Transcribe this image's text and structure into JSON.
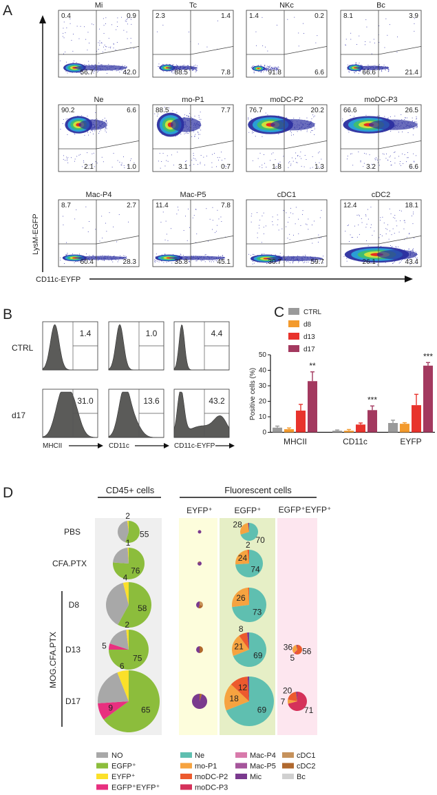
{
  "panel_labels": {
    "a": "A",
    "b": "B",
    "c": "C",
    "d": "D"
  },
  "panel_a": {
    "y_axis_label": "LysM-EGFP",
    "x_axis_label": "CD11c-EYFP",
    "plots": [
      {
        "title": "Mi",
        "q": [
          "0.4",
          "0.9",
          "56.7",
          "42.0"
        ]
      },
      {
        "title": "Tc",
        "q": [
          "2.3",
          "1.4",
          "88.5",
          "7.8"
        ]
      },
      {
        "title": "NKc",
        "q": [
          "1.4",
          "0.2",
          "91.8",
          "6.6"
        ]
      },
      {
        "title": "Bc",
        "q": [
          "8.1",
          "3.9",
          "66.6",
          "21.4"
        ]
      },
      {
        "title": "Ne",
        "q": [
          "90.2",
          "6.6",
          "2.1",
          "1.0"
        ]
      },
      {
        "title": "mo-P1",
        "q": [
          "88.5",
          "7.7",
          "3.1",
          "0.7"
        ]
      },
      {
        "title": "moDC-P2",
        "q": [
          "76.7",
          "20.2",
          "1.8",
          "1.3"
        ]
      },
      {
        "title": "moDC-P3",
        "q": [
          "66.6",
          "26.5",
          "3.2",
          "6.6"
        ]
      },
      {
        "title": "Mac-P4",
        "q": [
          "8.7",
          "2.7",
          "60.4",
          "28.3"
        ]
      },
      {
        "title": "Mac-P5",
        "q": [
          "11.4",
          "7.8",
          "35.8",
          "45.1"
        ]
      },
      {
        "title": "cDC1",
        "q": [
          null,
          null,
          "30.7",
          "59.7"
        ]
      },
      {
        "title": "cDC2",
        "q": [
          "12.4",
          "18.1",
          "26.1",
          "43.4"
        ]
      }
    ]
  },
  "panel_b": {
    "rows": [
      "CTRL",
      "d17"
    ],
    "markers": [
      "MHCII",
      "CD11c",
      "CD11c-EYFP"
    ],
    "values": [
      [
        "1.4",
        "1.0",
        "4.4"
      ],
      [
        "31.0",
        "13.6",
        "43.2"
      ]
    ]
  },
  "chart_data": {
    "type": "bar",
    "title": "",
    "xlabel": "",
    "ylabel": "Positive cells (%)",
    "ylim": [
      0,
      50
    ],
    "yticks": [
      "0",
      "10",
      "20",
      "30",
      "40",
      "50"
    ],
    "categories": [
      "MHCII",
      "CD11c",
      "EYFP"
    ],
    "legend_position": "top-left",
    "series": [
      {
        "name": "CTRL",
        "color": "#9a9a9a",
        "values": [
          3,
          1,
          6
        ],
        "err_top": [
          4,
          1.5,
          7.8
        ]
      },
      {
        "name": "d8",
        "color": "#f39a2d",
        "values": [
          2,
          1,
          5.5
        ],
        "err_top": [
          2.8,
          1.8,
          6.2
        ]
      },
      {
        "name": "d13",
        "color": "#e8332c",
        "values": [
          14,
          5,
          17.5
        ],
        "err_top": [
          18,
          6,
          24.5
        ]
      },
      {
        "name": "d17",
        "color": "#a3395f",
        "values": [
          33,
          14.3,
          43
        ],
        "err_top": [
          39,
          17,
          45
        ]
      }
    ],
    "significance": [
      "**",
      "***",
      "***"
    ]
  },
  "panel_d": {
    "header_cd45": "CD45+ cells",
    "header_fluor": "Fluorescent cells",
    "sub_eyfp": "EYFP⁺",
    "sub_egfp": "EGFP⁺",
    "sub_double": "EGFP⁺EYFP⁺",
    "group_label": "MOG.CFA.PTX",
    "rows": [
      "PBS",
      "CFA.PTX",
      "D8",
      "D13",
      "D17"
    ],
    "cd45_colors": {
      "NO": "#a8a8a8",
      "EGFP": "#8cbd3c",
      "EYFP": "#fbe02a",
      "DOUBLE": "#e8307f"
    },
    "cell_colors": {
      "Ne": "#5fbfb0",
      "mo-P1": "#f6a340",
      "moDC-P2": "#ec5a2e",
      "moDC-P3": "#d5315a",
      "Mac-P4": "#d87aab",
      "Mac-P5": "#a5559b",
      "Mic": "#7a3a8e",
      "cDC1": "#c6925c",
      "cDC2": "#b0682e",
      "Bc": "#d0d0d0"
    },
    "cd45_pies": [
      {
        "size": 16,
        "segments": [
          {
            "k": "EGFP",
            "v": 55,
            "label": "55"
          },
          {
            "k": "NO",
            "v": 43
          },
          {
            "k": "EYFP",
            "v": 2,
            "label": "2"
          }
        ]
      },
      {
        "size": 23,
        "segments": [
          {
            "k": "EGFP",
            "v": 76,
            "label": "76"
          },
          {
            "k": "NO",
            "v": 23
          },
          {
            "k": "EYFP",
            "v": 1,
            "label": "1"
          }
        ]
      },
      {
        "size": 33,
        "segments": [
          {
            "k": "EGFP",
            "v": 58,
            "label": "58"
          },
          {
            "k": "NO",
            "v": 38
          },
          {
            "k": "EYFP",
            "v": 4,
            "label": "4"
          }
        ]
      },
      {
        "size": 29,
        "segments": [
          {
            "k": "EGFP",
            "v": 75,
            "label": "75"
          },
          {
            "k": "DOUBLE",
            "v": 5,
            "label": "5"
          },
          {
            "k": "NO",
            "v": 18
          },
          {
            "k": "EYFP",
            "v": 2,
            "label": "2"
          }
        ]
      },
      {
        "size": 45,
        "segments": [
          {
            "k": "EGFP",
            "v": 65,
            "label": "65"
          },
          {
            "k": "DOUBLE",
            "v": 9,
            "label": "9"
          },
          {
            "k": "NO",
            "v": 20
          },
          {
            "k": "EYFP",
            "v": 6,
            "label": "6"
          }
        ]
      }
    ],
    "eyfp_pies": [
      {
        "size": 2.5,
        "segments": [
          {
            "k": "Mic",
            "v": 100
          }
        ]
      },
      {
        "size": 3,
        "segments": [
          {
            "k": "Mic",
            "v": 90
          },
          {
            "k": "cDC2",
            "v": 10
          }
        ]
      },
      {
        "size": 5,
        "segments": [
          {
            "k": "cDC1",
            "v": 30
          },
          {
            "k": "cDC2",
            "v": 25
          },
          {
            "k": "Mic",
            "v": 45
          }
        ]
      },
      {
        "size": 5,
        "segments": [
          {
            "k": "cDC2",
            "v": 50
          },
          {
            "k": "Mic",
            "v": 50
          }
        ]
      },
      {
        "size": 11,
        "segments": [
          {
            "k": "cDC2",
            "v": 5
          },
          {
            "k": "Mic",
            "v": 95
          }
        ]
      }
    ],
    "egfp_pies": [
      {
        "size": 13,
        "segments": [
          {
            "k": "Ne",
            "v": 70,
            "label": "70"
          },
          {
            "k": "mo-P1",
            "v": 28,
            "label": "28"
          },
          {
            "k": "Mic",
            "v": 2
          }
        ]
      },
      {
        "size": 20,
        "segments": [
          {
            "k": "Ne",
            "v": 74,
            "label": "74"
          },
          {
            "k": "mo-P1",
            "v": 24,
            "label": "24"
          },
          {
            "k": "moDC-P2",
            "v": 2,
            "label": "2"
          }
        ]
      },
      {
        "size": 25,
        "segments": [
          {
            "k": "Ne",
            "v": 73,
            "label": "73"
          },
          {
            "k": "mo-P1",
            "v": 26,
            "label": "26"
          },
          {
            "k": "moDC-P2",
            "v": 1
          }
        ]
      },
      {
        "size": 25,
        "segments": [
          {
            "k": "Ne",
            "v": 69,
            "label": "69"
          },
          {
            "k": "mo-P1",
            "v": 21,
            "label": "21"
          },
          {
            "k": "moDC-P2",
            "v": 8,
            "label": "8"
          },
          {
            "k": "Mic",
            "v": 2
          }
        ]
      },
      {
        "size": 36,
        "segments": [
          {
            "k": "Ne",
            "v": 69,
            "label": "69"
          },
          {
            "k": "mo-P1",
            "v": 18,
            "label": "18"
          },
          {
            "k": "moDC-P2",
            "v": 12,
            "label": "12"
          },
          {
            "k": "Mic",
            "v": 1
          }
        ]
      }
    ],
    "double_pies": [
      null,
      null,
      null,
      {
        "size": 7,
        "segments": [
          {
            "k": "moDC-P2",
            "v": 56,
            "label": "56"
          },
          {
            "k": "moDC-P3",
            "v": 5,
            "label": "5"
          },
          {
            "k": "mo-P1",
            "v": 36,
            "label": "36"
          },
          {
            "k": "Mic",
            "v": 3
          }
        ]
      },
      {
        "size": 14,
        "segments": [
          {
            "k": "moDC-P3",
            "v": 71,
            "label": "71"
          },
          {
            "k": "mo-P1",
            "v": 7,
            "label": "7"
          },
          {
            "k": "moDC-P2",
            "v": 20,
            "label": "20"
          },
          {
            "k": "Mic",
            "v": 2
          }
        ]
      }
    ],
    "legend_cd45": [
      {
        "k": "NO",
        "label": "NO"
      },
      {
        "k": "EGFP",
        "label": "EGFP⁺"
      },
      {
        "k": "EYFP",
        "label": "EYFP⁺"
      },
      {
        "k": "DOUBLE",
        "label": "EGFP⁺EYFP⁺"
      }
    ],
    "legend_cells": [
      [
        "Ne",
        "mo-P1",
        "moDC-P2",
        "moDC-P3"
      ],
      [
        "Mac-P4",
        "Mac-P5",
        "Mic"
      ],
      [
        "cDC1",
        "cDC2",
        "Bc"
      ]
    ]
  }
}
